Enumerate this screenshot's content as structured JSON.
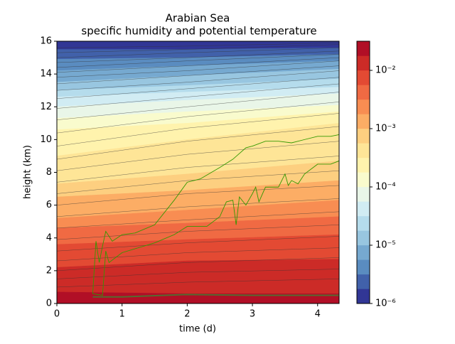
{
  "chart_data": {
    "type": "contour",
    "title": "Arabian Sea",
    "subtitle": "specific humidity and potential temperature",
    "xlabel": "time (d)",
    "ylabel": "height (km)",
    "xlim": [
      0,
      4.33
    ],
    "ylim": [
      0,
      16
    ],
    "xticks": [
      0,
      1,
      2,
      3,
      4
    ],
    "yticks": [
      0,
      2,
      4,
      6,
      8,
      10,
      12,
      14,
      16
    ],
    "colorbar_scale": "log",
    "levels": [
      1e-06,
      1.778e-06,
      3.162e-06,
      5.623e-06,
      1e-05,
      1.778e-05,
      3.162e-05,
      5.623e-05,
      0.0001,
      0.0001778,
      0.0003162,
      0.0005623,
      0.001,
      0.001778,
      0.003162,
      0.005623,
      0.01,
      0.01778,
      0.03162
    ],
    "colors": [
      "#313695",
      "#4161aa",
      "#5a8cc0",
      "#76a9d0",
      "#98c6e0",
      "#b5dcec",
      "#d1ecf3",
      "#e9f6e8",
      "#f9fbcd",
      "#fff3ad",
      "#fee597",
      "#fdcf80",
      "#fcad65",
      "#f88d52",
      "#f06a43",
      "#e34a33",
      "#cc2b27",
      "#b10f26"
    ],
    "colorbar_ticks": [
      {
        "value": 1e-06,
        "label": "10⁻⁶"
      },
      {
        "value": 1e-05,
        "label": "10⁻⁵"
      },
      {
        "value": 0.0001,
        "label": "10⁻⁴"
      },
      {
        "value": 0.001,
        "label": "10⁻³"
      },
      {
        "value": 0.01,
        "label": "10⁻²"
      }
    ],
    "field_x": [
      0,
      2,
      4.33
    ],
    "level_heights": [
      [
        15.5,
        15.5,
        15.6
      ],
      [
        14.9,
        15.0,
        15.2
      ],
      [
        14.2,
        14.5,
        14.8
      ],
      [
        13.5,
        13.9,
        14.3
      ],
      [
        13.0,
        13.3,
        13.7
      ],
      [
        12.6,
        12.9,
        13.2
      ],
      [
        12.0,
        12.4,
        12.8
      ],
      [
        11.3,
        11.7,
        12.1
      ],
      [
        10.6,
        11.0,
        11.7
      ],
      [
        9.0,
        10.0,
        11.0
      ],
      [
        7.3,
        7.9,
        8.7
      ],
      [
        6.5,
        6.9,
        7.5
      ],
      [
        5.2,
        5.7,
        6.3
      ],
      [
        4.6,
        4.9,
        5.3
      ],
      [
        3.6,
        3.9,
        4.2
      ],
      [
        2.2,
        2.6,
        2.7
      ],
      [
        0.7,
        0.6,
        0.6
      ]
    ],
    "theta_lines": [
      [
        1.0,
        1.3,
        1.5
      ],
      [
        1.5,
        1.9,
        2.1
      ],
      [
        2.0,
        2.5,
        2.8
      ],
      [
        2.6,
        3.1,
        3.4
      ],
      [
        3.2,
        3.7,
        4.1
      ],
      [
        3.9,
        4.4,
        4.8
      ],
      [
        4.6,
        5.1,
        5.6
      ],
      [
        5.3,
        5.9,
        6.4
      ],
      [
        6.0,
        6.7,
        7.2
      ],
      [
        6.7,
        7.5,
        8.1
      ],
      [
        7.4,
        8.3,
        9.0
      ],
      [
        8.1,
        9.1,
        9.9
      ],
      [
        8.8,
        9.9,
        10.8
      ],
      [
        9.6,
        10.7,
        11.6
      ],
      [
        10.4,
        11.4,
        12.3
      ],
      [
        11.2,
        12.0,
        12.9
      ],
      [
        11.9,
        12.6,
        13.4
      ],
      [
        12.5,
        13.1,
        13.8
      ],
      [
        13.0,
        13.5,
        14.2
      ],
      [
        13.4,
        13.9,
        14.5
      ],
      [
        13.8,
        14.2,
        14.8
      ],
      [
        14.1,
        14.5,
        15.0
      ],
      [
        14.4,
        14.8,
        15.2
      ],
      [
        14.7,
        15.0,
        15.4
      ],
      [
        15.0,
        15.3,
        15.6
      ],
      [
        15.3,
        15.5,
        15.8
      ],
      [
        15.6,
        15.7,
        15.9
      ]
    ],
    "series": [
      {
        "color": "#339900",
        "x": [
          0.55,
          0.6,
          0.65,
          0.7,
          0.75,
          0.85,
          1.0,
          1.2,
          1.5,
          1.8,
          2.0,
          2.2,
          2.5,
          2.7,
          2.9,
          3.0,
          3.2,
          3.4,
          3.6,
          3.8,
          4.0,
          4.2,
          4.33
        ],
        "values": [
          0.6,
          3.8,
          2.5,
          3.5,
          4.4,
          3.8,
          4.2,
          4.3,
          4.8,
          6.3,
          7.4,
          7.6,
          8.3,
          8.8,
          9.5,
          9.6,
          9.9,
          9.9,
          9.8,
          10.0,
          10.2,
          10.2,
          10.3
        ]
      },
      {
        "color": "#339900",
        "x": [
          0.55,
          0.7,
          0.75,
          0.8,
          1.0,
          1.5,
          1.8,
          2.0,
          2.3,
          2.5,
          2.6,
          2.7,
          2.75,
          2.8,
          2.9,
          3.0,
          3.05,
          3.1,
          3.2,
          3.4,
          3.5,
          3.55,
          3.6,
          3.7,
          3.8,
          4.0,
          4.2,
          4.33
        ],
        "values": [
          0.6,
          0.5,
          3.2,
          2.5,
          3.1,
          3.7,
          4.2,
          4.7,
          4.7,
          5.3,
          6.2,
          6.3,
          4.8,
          6.5,
          6.0,
          6.7,
          7.1,
          6.2,
          7.1,
          7.1,
          7.9,
          7.2,
          7.5,
          7.3,
          7.9,
          8.5,
          8.5,
          8.7
        ]
      },
      {
        "color": "#556b2f",
        "x": [
          0.55,
          1.0,
          2.0,
          3.0,
          4.33
        ],
        "values": [
          0.4,
          0.4,
          0.55,
          0.5,
          0.5
        ]
      }
    ]
  }
}
